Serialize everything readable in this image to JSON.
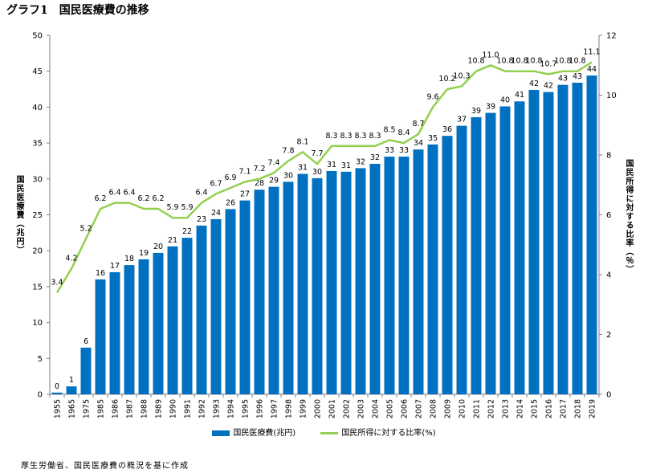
{
  "chart_data": {
    "type": "bar",
    "title": "グラフ1　国民医療費の推移",
    "categories": [
      "1955",
      "1965",
      "1975",
      "1985",
      "1986",
      "1987",
      "1988",
      "1989",
      "1990",
      "1991",
      "1992",
      "1993",
      "1994",
      "1995",
      "1996",
      "1997",
      "1998",
      "1999",
      "2000",
      "2001",
      "2002",
      "2003",
      "2004",
      "2005",
      "2006",
      "2007",
      "2008",
      "2009",
      "2010",
      "2011",
      "2012",
      "2013",
      "2014",
      "2015",
      "2016",
      "2017",
      "2018",
      "2019"
    ],
    "series": [
      {
        "name": "国民医療費(兆円)",
        "type": "bar",
        "axis": "left",
        "color": "#0070C0",
        "values": [
          0.24,
          1.1,
          6.5,
          16.0,
          17.0,
          18.0,
          18.8,
          19.7,
          20.6,
          21.8,
          23.5,
          24.4,
          25.8,
          27.0,
          28.5,
          28.9,
          29.6,
          30.7,
          30.1,
          31.1,
          31.0,
          31.5,
          32.1,
          33.1,
          33.1,
          34.1,
          34.8,
          36.0,
          37.4,
          38.6,
          39.2,
          40.1,
          40.8,
          42.4,
          42.1,
          43.1,
          43.4,
          44.4
        ],
        "labels": [
          "0",
          "1",
          "6",
          "16",
          "17",
          "18",
          "19",
          "20",
          "21",
          "22",
          "23",
          "24",
          "26",
          "27",
          "28",
          "29",
          "30",
          "31",
          "30",
          "31",
          "31",
          "32",
          "32",
          "33",
          "33",
          "34",
          "35",
          "36",
          "37",
          "39",
          "39",
          "40",
          "41",
          "42",
          "42",
          "43",
          "43",
          "44"
        ]
      },
      {
        "name": "国民所得に対する比率(%)",
        "type": "line",
        "axis": "right",
        "color": "#92D050",
        "values": [
          3.4,
          4.2,
          5.2,
          6.2,
          6.4,
          6.4,
          6.2,
          6.2,
          5.9,
          5.9,
          6.4,
          6.7,
          6.9,
          7.1,
          7.2,
          7.4,
          7.8,
          8.1,
          7.7,
          8.3,
          8.3,
          8.3,
          8.3,
          8.5,
          8.4,
          8.7,
          9.6,
          10.2,
          10.3,
          10.8,
          11.0,
          10.8,
          10.8,
          10.8,
          10.7,
          10.8,
          10.8,
          11.1
        ],
        "labels": [
          "3.4",
          "4.2",
          "5.2",
          "6.2",
          "6.4",
          "6.4",
          "6.2",
          "6.2",
          "5.9",
          "5.9",
          "6.4",
          "6.7",
          "6.9",
          "7.1",
          "7.2",
          "7.4",
          "7.8",
          "8.1",
          "7.7",
          "8.3",
          "8.3",
          "8.3",
          "8.3",
          "8.5",
          "8.4",
          "8.7",
          "9.6",
          "10.2",
          "10.3",
          "10.8",
          "11.0",
          "10.8",
          "10.8",
          "10.8",
          "10.7",
          "10.8",
          "10.8",
          "11.1"
        ]
      }
    ],
    "ylabel": "国民医療費（兆円）",
    "y2label": "国民所得に対する比率（％）",
    "ylim": [
      0,
      50
    ],
    "yticks": [
      "0",
      "5",
      "10",
      "15",
      "20",
      "25",
      "30",
      "35",
      "40",
      "45",
      "50"
    ],
    "y2lim": [
      0,
      12
    ],
    "y2ticks": [
      "0",
      "2",
      "4",
      "6",
      "8",
      "10",
      "12"
    ],
    "grid": false,
    "legend": "bottom"
  },
  "source_note": "厚生労働省、国民医療費の概況を基に作成"
}
